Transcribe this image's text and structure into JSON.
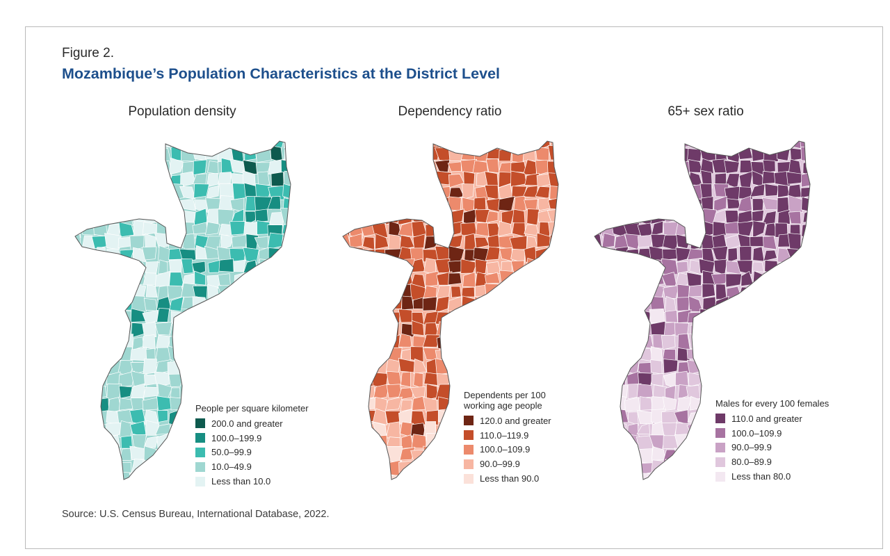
{
  "figure": {
    "label": "Figure 2.",
    "title": "Mozambique’s Population Characteristics at the District Level",
    "source": "Source: U.S. Census Bureau, International Database, 2022."
  },
  "maps": [
    {
      "id": "density",
      "title": "Population density",
      "legend_title": "People per square kilometer",
      "legend": [
        {
          "label": "200.0 and greater",
          "color": "#0e5a4e"
        },
        {
          "label": "100.0–199.9",
          "color": "#178e82"
        },
        {
          "label": "50.0–99.9",
          "color": "#3cbcb0"
        },
        {
          "label": "10.0–49.9",
          "color": "#9fd7d1"
        },
        {
          "label": "Less than 10.0",
          "color": "#e3f3f3"
        }
      ]
    },
    {
      "id": "dependency",
      "title": "Dependency ratio",
      "legend_title": "Dependents per 100 working age people",
      "legend": [
        {
          "label": "120.0 and greater",
          "color": "#6e2514"
        },
        {
          "label": "110.0–119.9",
          "color": "#c44e2a"
        },
        {
          "label": "100.0–109.9",
          "color": "#ec8a6c"
        },
        {
          "label": "90.0–99.9",
          "color": "#f7b6a2"
        },
        {
          "label": "Less than 90.0",
          "color": "#fbe1d9"
        }
      ]
    },
    {
      "id": "sexratio",
      "title": "65+ sex ratio",
      "legend_title": "Males for every 100 females",
      "legend": [
        {
          "label": "110.0 and greater",
          "color": "#6e3a68"
        },
        {
          "label": "100.0–109.9",
          "color": "#a773a1"
        },
        {
          "label": "90.0–99.9",
          "color": "#c9a2c5"
        },
        {
          "label": "80.0–89.9",
          "color": "#e0c7dd"
        },
        {
          "label": "Less than 80.0",
          "color": "#f3e8f1"
        }
      ]
    }
  ]
}
